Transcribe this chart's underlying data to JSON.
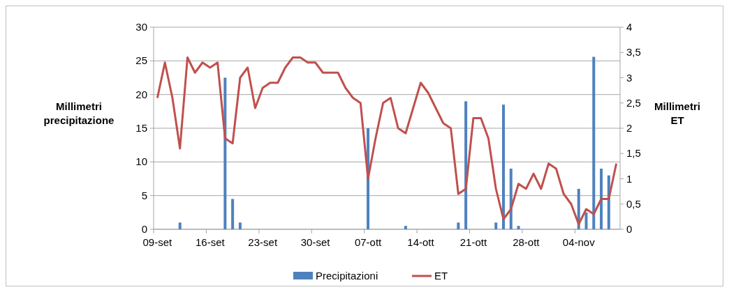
{
  "chart_data": {
    "type": "bar",
    "ylabel": "Millimetri\nprecipitazione",
    "y2label": "Millimetri\nET",
    "categories": [
      "09-set",
      null,
      null,
      null,
      null,
      null,
      null,
      "16-set",
      null,
      null,
      null,
      null,
      null,
      null,
      "23-set",
      null,
      null,
      null,
      null,
      null,
      null,
      "30-set",
      null,
      null,
      null,
      null,
      null,
      null,
      "07-ott",
      null,
      null,
      null,
      null,
      null,
      null,
      "14-ott",
      null,
      null,
      null,
      null,
      null,
      null,
      "21-ott",
      null,
      null,
      null,
      null,
      null,
      null,
      "28-ott",
      null,
      null,
      null,
      null,
      null,
      null,
      "04-nov",
      null,
      null,
      null,
      null,
      null
    ],
    "series": [
      {
        "name": "Precipitazioni",
        "color": "#4f81bd",
        "values": [
          0,
          0,
          0,
          1,
          0,
          0,
          0,
          0,
          0,
          22.5,
          4.5,
          1,
          0,
          0,
          0,
          0,
          0,
          0,
          0,
          0,
          0,
          0,
          0,
          0,
          0,
          0,
          0,
          0,
          15,
          0,
          0,
          0,
          0,
          0.5,
          0,
          0,
          0,
          0,
          0,
          0,
          1,
          19,
          0,
          0,
          0,
          1,
          18.5,
          9,
          0.5,
          0,
          0,
          0,
          0,
          0,
          0,
          0,
          6,
          2.5,
          25.6,
          9,
          8,
          0
        ]
      },
      {
        "name": "ET",
        "type": "line",
        "axis": "y2",
        "color": "#c0504d",
        "values": [
          2.6,
          3.3,
          2.6,
          1.6,
          3.4,
          3.1,
          3.3,
          3.2,
          3.3,
          1.8,
          1.7,
          3.0,
          3.2,
          2.4,
          2.8,
          2.9,
          2.9,
          3.2,
          3.4,
          3.4,
          3.3,
          3.3,
          3.1,
          3.1,
          3.1,
          2.8,
          2.6,
          2.5,
          1.0,
          1.8,
          2.5,
          2.6,
          2.0,
          1.9,
          2.4,
          2.9,
          2.7,
          2.4,
          2.1,
          2.0,
          0.7,
          0.8,
          2.2,
          2.2,
          1.8,
          0.8,
          0.2,
          0.4,
          0.9,
          0.8,
          1.1,
          0.8,
          1.3,
          1.2,
          0.7,
          0.5,
          0.1,
          0.4,
          0.3,
          0.6,
          0.6,
          1.3
        ]
      }
    ],
    "ylim": [
      0,
      30
    ],
    "yticks": [
      0,
      5,
      10,
      15,
      20,
      25,
      30
    ],
    "y2lim": [
      0,
      4
    ],
    "y2ticks": [
      0,
      {
        "value": 0.5,
        "label": "0,5"
      },
      1,
      {
        "value": 1.5,
        "label": "1,5"
      },
      2,
      {
        "value": 2.5,
        "label": "2,5"
      },
      3,
      {
        "value": 3.5,
        "label": "3,5"
      },
      4
    ],
    "grid": "y",
    "legend": "bottom",
    "line_style": "solid",
    "marker": "none"
  }
}
